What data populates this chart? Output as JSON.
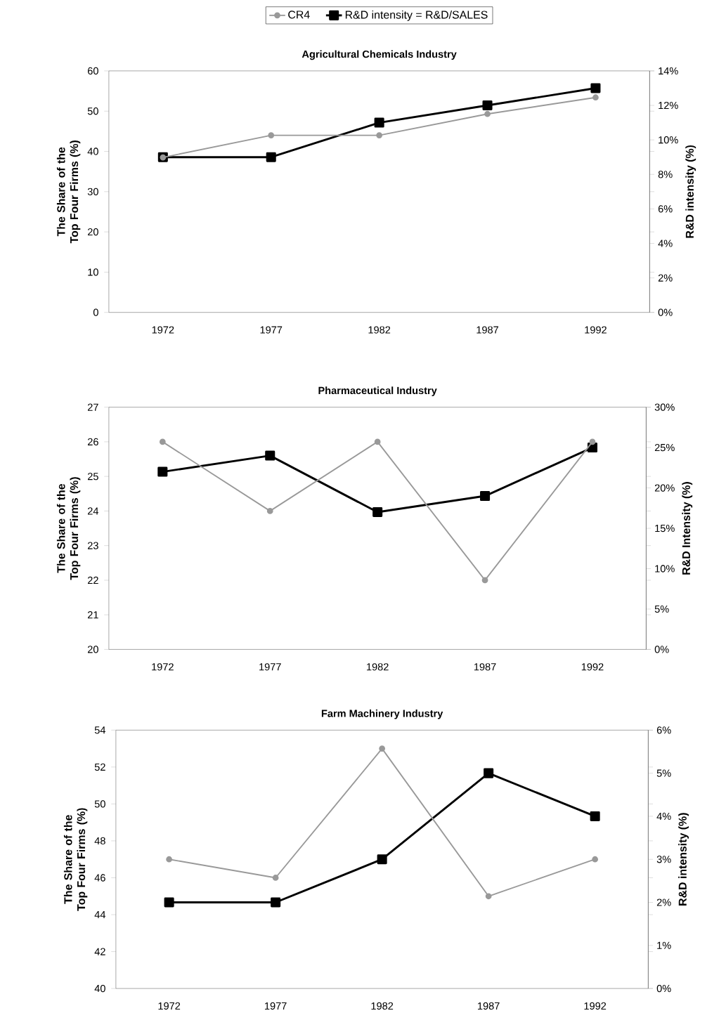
{
  "chart_data": [
    {
      "type": "line",
      "title": "Agricultural Chemicals Industry",
      "ylabel": "The Share of the Top Four Firms (%)",
      "y2label": "R&D intensity (%)",
      "categories": [
        "1972",
        "1977",
        "1982",
        "1987",
        "1992"
      ],
      "ylim": [
        0,
        60
      ],
      "yticks": [
        0,
        10,
        20,
        30,
        40,
        50,
        60
      ],
      "y2lim": [
        0,
        14
      ],
      "y2ticks": [
        {
          "value": 0,
          "label": "0%"
        },
        {
          "value": 2,
          "label": "2%"
        },
        {
          "value": 4,
          "label": "4%"
        },
        {
          "value": 6,
          "label": "6%"
        },
        {
          "value": 8,
          "label": "8%"
        },
        {
          "value": 10,
          "label": "10%"
        },
        {
          "value": 12,
          "label": "12%"
        },
        {
          "value": 14,
          "label": "14%"
        }
      ],
      "legend": "top",
      "series": [
        {
          "name": "CR4",
          "color": "#999999",
          "marker": "circle",
          "values": [
            38.5,
            44,
            44,
            49.3,
            53.4
          ]
        },
        {
          "name": "R&D intensity = R&D/SALES",
          "color": "#000000",
          "marker": "square",
          "axis": "y2",
          "values": [
            9,
            9,
            11,
            12,
            13
          ]
        }
      ]
    },
    {
      "type": "line",
      "title": "Pharmaceutical Industry",
      "ylabel": "The Share of the Top Four Firms (%)",
      "y2label": "R&D Intensity (%)",
      "categories": [
        "1972",
        "1977",
        "1982",
        "1987",
        "1992"
      ],
      "ylim": [
        20,
        27
      ],
      "yticks": [
        20,
        21,
        22,
        23,
        24,
        25,
        26,
        27
      ],
      "y2lim": [
        0,
        30
      ],
      "y2ticks": [
        {
          "value": 0,
          "label": "0%"
        },
        {
          "value": 5,
          "label": "5%"
        },
        {
          "value": 10,
          "label": "10%"
        },
        {
          "value": 15,
          "label": "15%"
        },
        {
          "value": 20,
          "label": "20%"
        },
        {
          "value": 25,
          "label": "25%"
        },
        {
          "value": 30,
          "label": "30%"
        }
      ],
      "series": [
        {
          "color": "#999999",
          "marker": "circle",
          "values": [
            26,
            24,
            26,
            22,
            26
          ]
        },
        {
          "color": "#000000",
          "marker": "square",
          "axis": "y2",
          "values": [
            22,
            24,
            17,
            19,
            25
          ]
        }
      ]
    },
    {
      "type": "line",
      "title": "Farm Machinery Industry",
      "ylabel": "The Share of the Top Four Firms (%)",
      "y2label": "R&D intensity (%)",
      "categories": [
        "1972",
        "1977",
        "1982",
        "1987",
        "1992"
      ],
      "ylim": [
        40,
        54
      ],
      "yticks": [
        40,
        42,
        44,
        46,
        48,
        50,
        52,
        54
      ],
      "y2lim": [
        0,
        6
      ],
      "y2ticks": [
        {
          "value": 0,
          "label": "0%"
        },
        {
          "value": 1,
          "label": "1%"
        },
        {
          "value": 2,
          "label": "2%"
        },
        {
          "value": 3,
          "label": "3%"
        },
        {
          "value": 4,
          "label": "4%"
        },
        {
          "value": 5,
          "label": "5%"
        },
        {
          "value": 6,
          "label": "6%"
        }
      ],
      "series": [
        {
          "color": "#999999",
          "marker": "circle",
          "values": [
            47,
            46,
            53,
            45,
            47
          ]
        },
        {
          "color": "#000000",
          "marker": "square",
          "axis": "y2",
          "values": [
            2,
            2,
            3,
            5,
            4
          ]
        }
      ]
    }
  ]
}
